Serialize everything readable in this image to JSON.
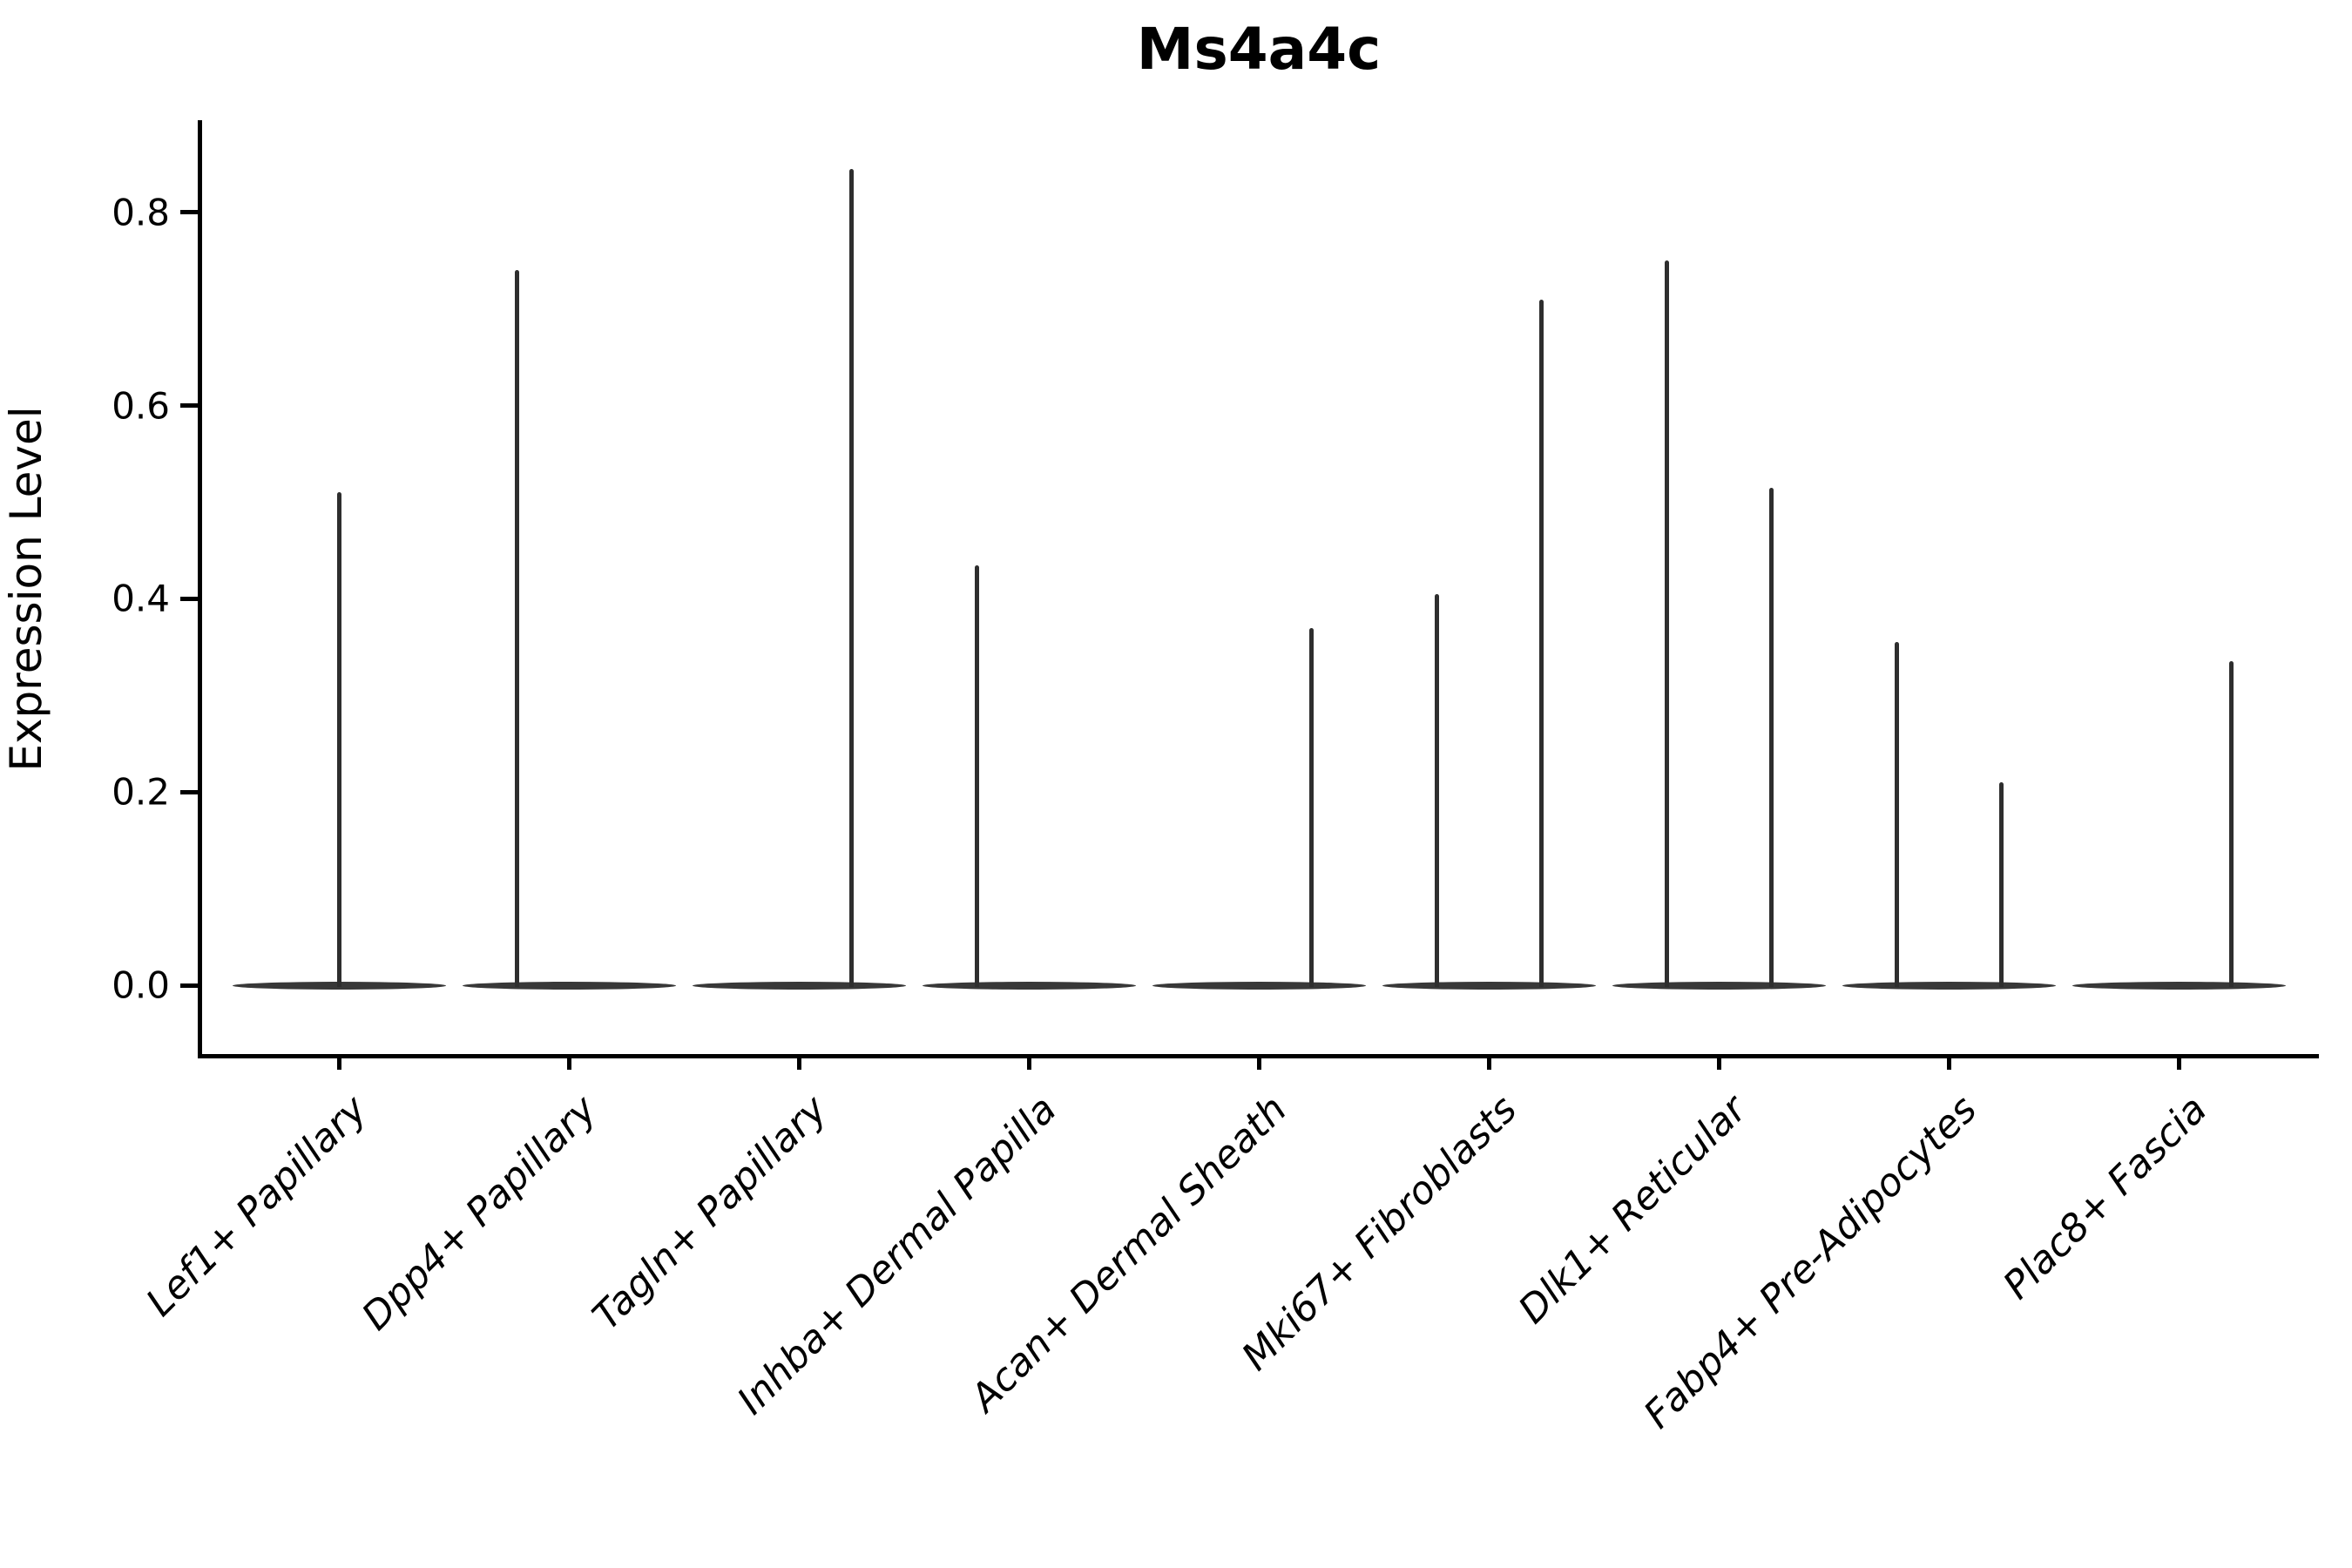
{
  "title": "Ms4a4c",
  "y_axis": {
    "label": "Expression Level",
    "tick_labels": [
      "0.0",
      "0.2",
      "0.4",
      "0.6",
      "0.8"
    ]
  },
  "x_axis": {
    "tick_labels": [
      "Lef1+ Papillary",
      "Dpp4+ Papillary",
      "Tagln+ Papillary",
      "Inhba+ Dermal Papilla",
      "Acan+ Dermal Sheath",
      "Mki67+ Fibroblasts",
      "Dlk1+ Reticular",
      "Fabp4+ Pre-Adipocytes",
      "Plac8+ Fascia"
    ]
  },
  "colors": {
    "violin_line": "#2e2e2e",
    "violin_base": "#383838",
    "axis": "#000000",
    "text": "#000000",
    "background": "#ffffff"
  },
  "chart_data": {
    "type": "violin",
    "title": "Ms4a4c",
    "xlabel": "",
    "ylabel": "Expression Level",
    "ylim": [
      -0.07,
      0.89
    ],
    "yticks": [
      0.0,
      0.2,
      0.4,
      0.6,
      0.8
    ],
    "ytick_labels": [
      "0.0",
      "0.2",
      "0.4",
      "0.6",
      "0.8"
    ],
    "grid": false,
    "legend": "none",
    "baseline_value": 0.0,
    "categories": [
      "Lef1+ Papillary",
      "Dpp4+ Papillary",
      "Tagln+ Papillary",
      "Inhba+ Dermal Papilla",
      "Acan+ Dermal Sheath",
      "Mki67+ Fibroblasts",
      "Dlk1+ Reticular",
      "Fabp4+ Pre-Adipocytes",
      "Plac8+ Fascia"
    ],
    "violins": [
      {
        "category": "Lef1+ Papillary",
        "body_at_zero": true,
        "spikes": [
          {
            "position": "center",
            "max": 0.51
          }
        ]
      },
      {
        "category": "Dpp4+ Papillary",
        "body_at_zero": true,
        "spikes": [
          {
            "position": "left",
            "max": 0.74
          }
        ]
      },
      {
        "category": "Tagln+ Papillary",
        "body_at_zero": true,
        "spikes": [
          {
            "position": "right",
            "max": 0.845
          }
        ]
      },
      {
        "category": "Inhba+ Dermal Papilla",
        "body_at_zero": true,
        "spikes": [
          {
            "position": "left",
            "max": 0.435
          }
        ]
      },
      {
        "category": "Acan+ Dermal Sheath",
        "body_at_zero": true,
        "spikes": [
          {
            "position": "right",
            "max": 0.37
          }
        ]
      },
      {
        "category": "Mki67+ Fibroblasts",
        "body_at_zero": true,
        "spikes": [
          {
            "position": "left",
            "max": 0.405
          },
          {
            "position": "right",
            "max": 0.71
          }
        ]
      },
      {
        "category": "Dlk1+ Reticular",
        "body_at_zero": true,
        "spikes": [
          {
            "position": "left",
            "max": 0.75
          },
          {
            "position": "right",
            "max": 0.515
          }
        ]
      },
      {
        "category": "Fabp4+ Pre-Adipocytes",
        "body_at_zero": true,
        "spikes": [
          {
            "position": "left",
            "max": 0.355
          },
          {
            "position": "right",
            "max": 0.21
          }
        ]
      },
      {
        "category": "Plac8+ Fascia",
        "body_at_zero": true,
        "spikes": [
          {
            "position": "right",
            "max": 0.335
          }
        ]
      }
    ]
  }
}
